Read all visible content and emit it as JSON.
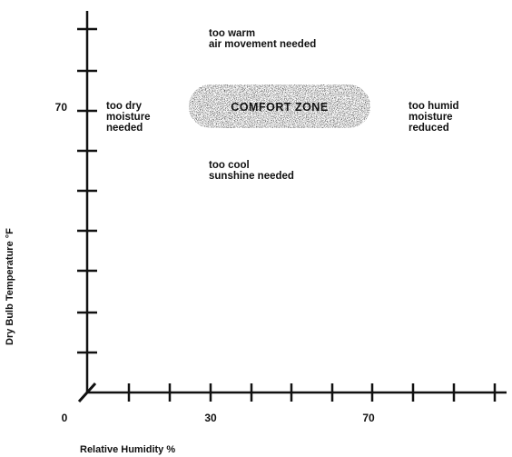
{
  "chart_data": {
    "type": "scatter",
    "xlabel": "Relative Humidity %",
    "ylabel": "Dry Bulb Temperature °F",
    "x_ticks": [
      {
        "value": 0,
        "label": "0"
      },
      {
        "value": 30,
        "label": "30"
      },
      {
        "value": 70,
        "label": "70"
      }
    ],
    "y_ticks": [
      {
        "value": 70,
        "label": "70"
      }
    ],
    "x_tick_marks": [
      5,
      15,
      20,
      25,
      30,
      35,
      40,
      45,
      50,
      55,
      60,
      65,
      70,
      75,
      80,
      85,
      90,
      95,
      100
    ],
    "x_minor_ticks": [
      10,
      20,
      30,
      40,
      50,
      60,
      70,
      80,
      90,
      100
    ],
    "y_tick_marks": [
      30,
      35,
      40,
      45,
      50,
      55,
      60,
      65,
      70,
      75,
      80
    ],
    "xlim": [
      0,
      100
    ],
    "ylim": [
      25,
      80
    ],
    "comfort_zone": {
      "label": "COMFORT ZONE",
      "x_range": [
        20,
        70
      ],
      "y_range": [
        67,
        74
      ]
    },
    "annotations": [
      {
        "lines": [
          "too warm",
          "air movement needed"
        ],
        "x": 30,
        "y": 78,
        "ref": "above"
      },
      {
        "lines": [
          "too dry",
          "moisture",
          "needed"
        ],
        "x": 10,
        "y": 70,
        "ref": "left"
      },
      {
        "lines": [
          "too humid",
          "moisture",
          "reduced"
        ],
        "x": 77,
        "y": 70,
        "ref": "right"
      },
      {
        "lines": [
          "too cool",
          "sunshine needed"
        ],
        "x": 30,
        "y": 64,
        "ref": "below"
      }
    ],
    "grid": false,
    "legend": "none"
  }
}
